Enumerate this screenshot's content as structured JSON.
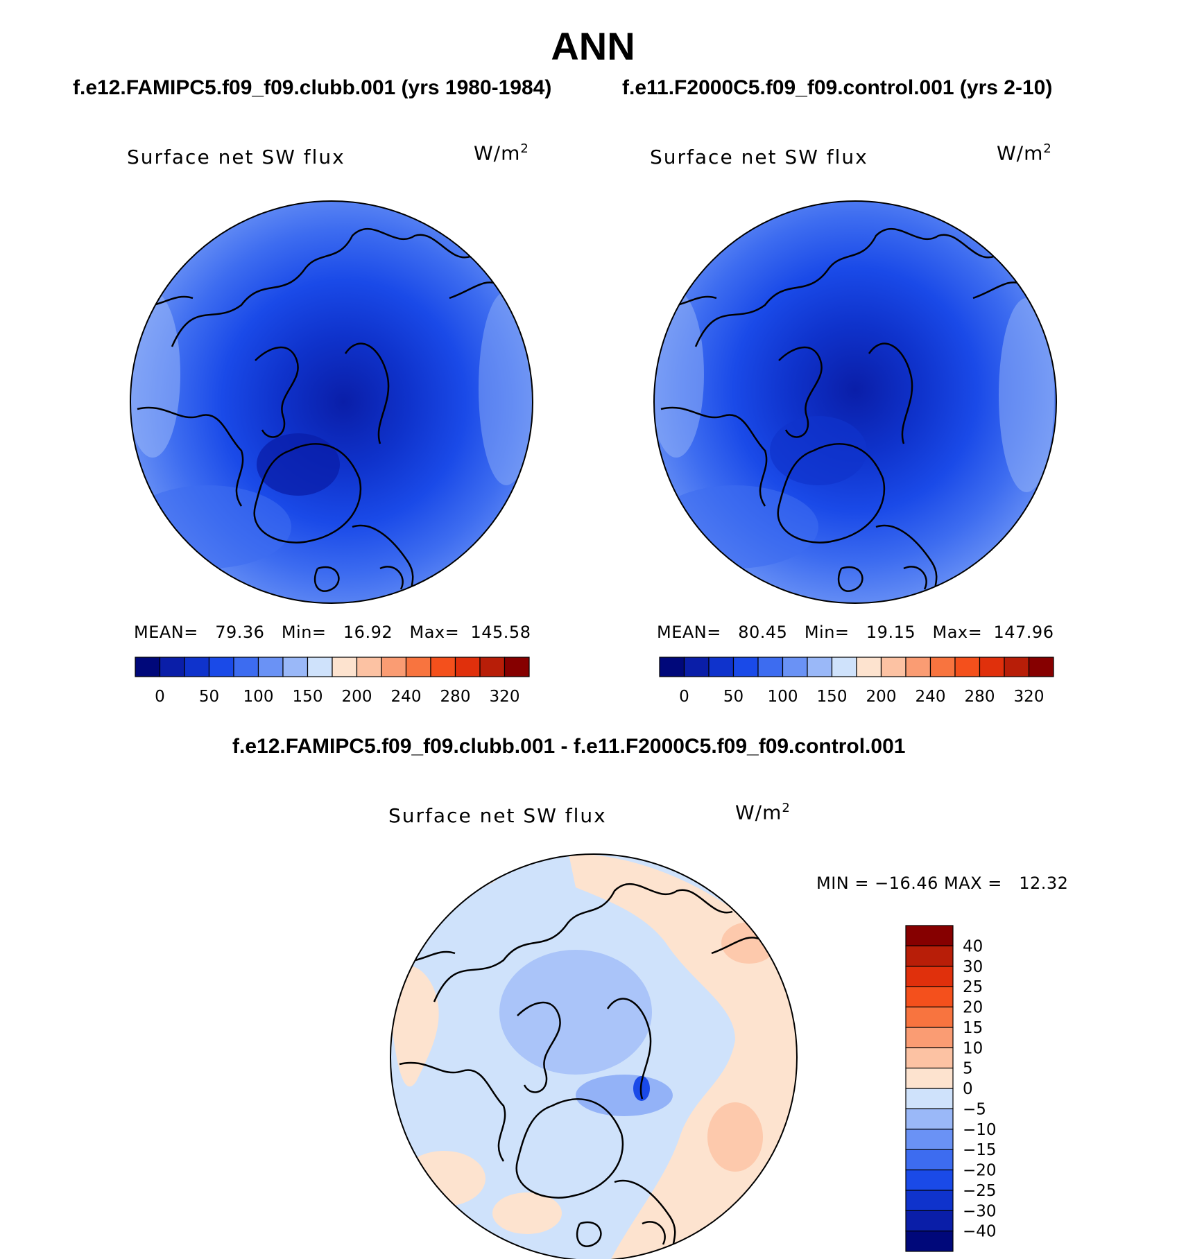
{
  "title": "ANN",
  "panels": [
    {
      "case_title": "f.e12.FAMIPC5.f09_f09.clubb.001 (yrs 1980-1984)",
      "variable": "Surface net SW flux",
      "units": "W/m",
      "units_exp": "2",
      "stats": "MEAN=   79.36   Min=   16.92   Max=  145.58"
    },
    {
      "case_title": "f.e11.F2000C5.f09_f09.control.001 (yrs 2-10)",
      "variable": "Surface net SW flux",
      "units": "W/m",
      "units_exp": "2",
      "stats": "MEAN=   80.45   Min=   19.15   Max=  147.96"
    }
  ],
  "diff": {
    "title": "f.e12.FAMIPC5.f09_f09.clubb.001 - f.e11.F2000C5.f09_f09.control.001",
    "variable": "Surface net SW flux",
    "units": "W/m",
    "units_exp": "2",
    "stats": "MIN = −16.46 MAX =   12.32"
  },
  "colorbar_top": {
    "labels": [
      "0",
      "50",
      "100",
      "150",
      "200",
      "240",
      "280",
      "320"
    ],
    "colors": [
      "#00087a",
      "#0a1ea8",
      "#0f33cc",
      "#1a4ae8",
      "#3d6cf0",
      "#6a92f5",
      "#9ab8f8",
      "#cfe2fb",
      "#fde3cf",
      "#fcc2a3",
      "#fa9c73",
      "#f8743f",
      "#f4501c",
      "#e0300c",
      "#b81e08",
      "#860000"
    ]
  },
  "colorbar_diff": {
    "labels": [
      "40",
      "30",
      "25",
      "20",
      "15",
      "10",
      "5",
      "0",
      "−5",
      "−10",
      "−15",
      "−20",
      "−25",
      "−30",
      "−40"
    ],
    "colors": [
      "#860000",
      "#b81e08",
      "#e0300c",
      "#f4501c",
      "#f8743f",
      "#fa9c73",
      "#fcc2a3",
      "#fde3cf",
      "#cfe2fb",
      "#9ab8f8",
      "#6a92f5",
      "#3d6cf0",
      "#1a4ae8",
      "#0f33cc",
      "#0a1ea8",
      "#00087a"
    ]
  }
}
